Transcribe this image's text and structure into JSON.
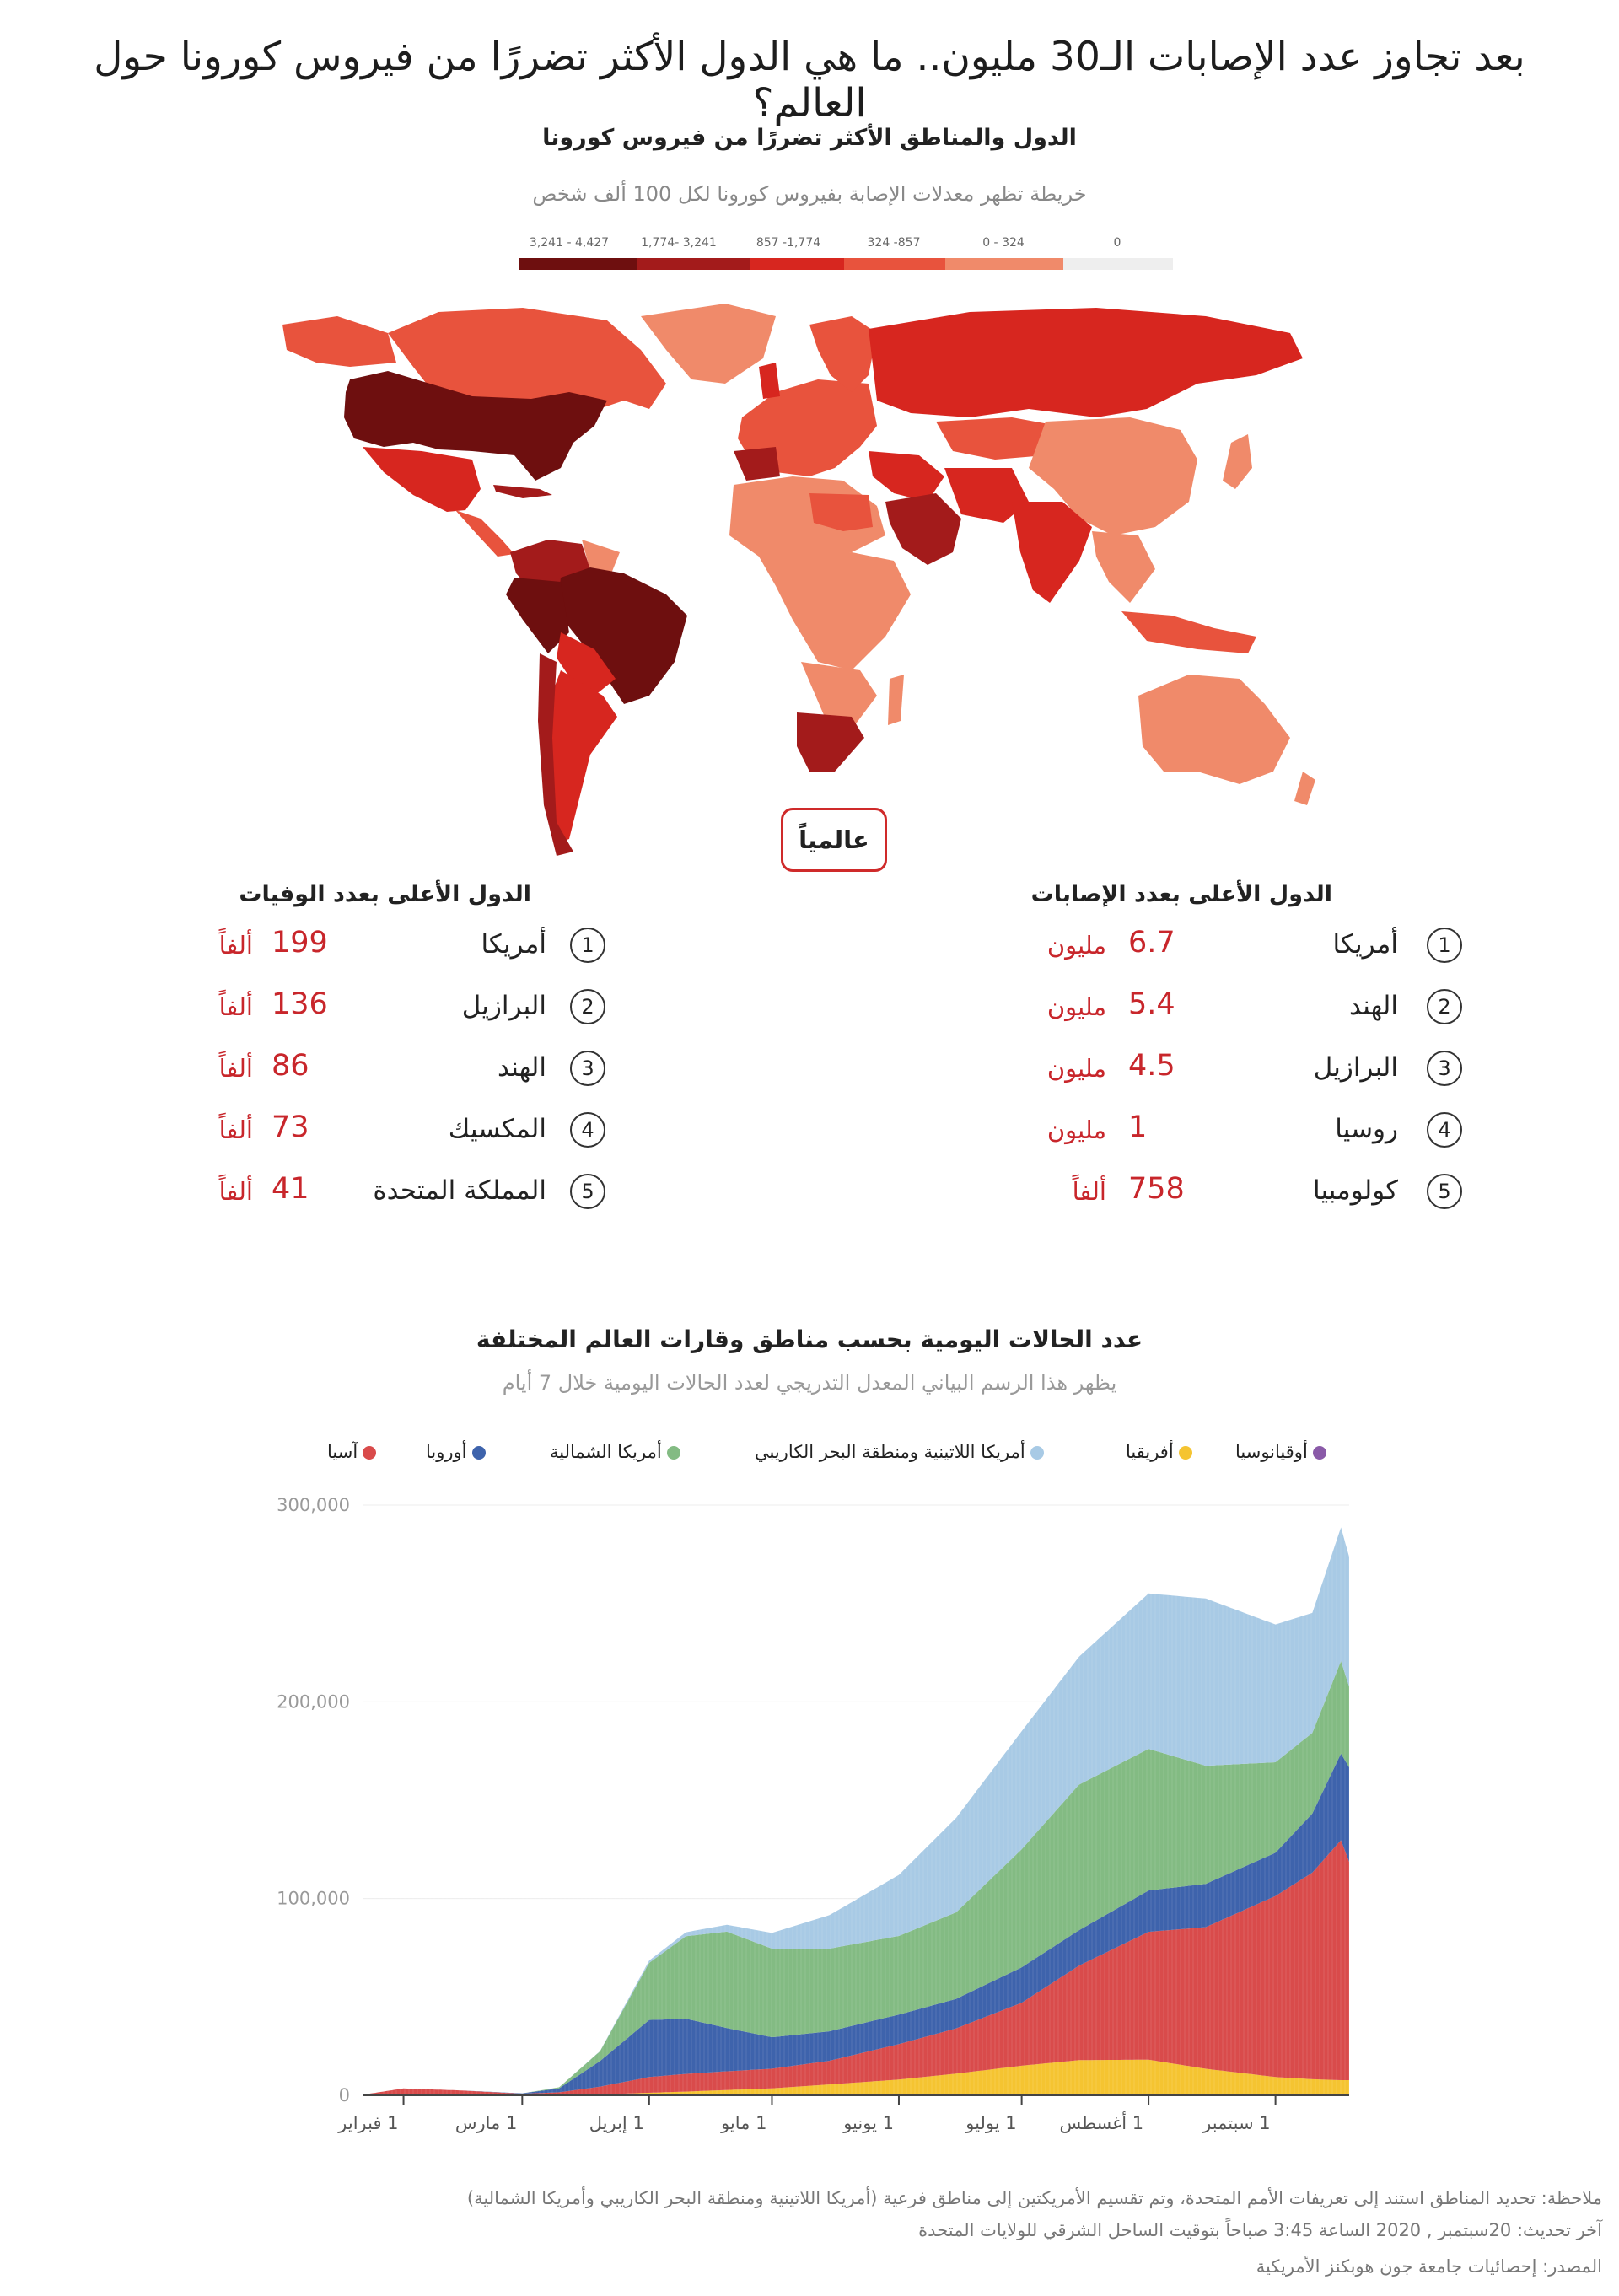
{
  "header": {
    "title": "بعد تجاوز عدد الإصابات الـ30 مليون.. ما هي الدول الأكثر تضررًا من فيروس كورونا حول العالم؟"
  },
  "map": {
    "title": "الدول والمناطق الأكثر تضررًا من فيروس كورونا",
    "subtitle": "خريطة تظهر معدلات الإصابة بفيروس كورونا لكل 100 ألف شخص",
    "legend": [
      {
        "label": "4,427 - 3,241",
        "color": "#6e0f0f"
      },
      {
        "label": "3,241 -1,774",
        "color": "#a31b1b"
      },
      {
        "label": "1,774- 857",
        "color": "#d7261f"
      },
      {
        "label": "857- 324",
        "color": "#e8533d"
      },
      {
        "label": "324 - 0",
        "color": "#f08a6a"
      },
      {
        "label": "0",
        "color": "#eeeeee"
      }
    ],
    "global_button": "عالمياً"
  },
  "rankings": {
    "cases": {
      "title": "الدول الأعلى بعدد الإصابات",
      "rows": [
        {
          "rank": "1",
          "country": "أمريكا",
          "value": "6.7",
          "unit": "مليون"
        },
        {
          "rank": "2",
          "country": "الهند",
          "value": "5.4",
          "unit": "مليون"
        },
        {
          "rank": "3",
          "country": "البرازيل",
          "value": "4.5",
          "unit": "مليون"
        },
        {
          "rank": "4",
          "country": "روسيا",
          "value": "1",
          "unit": "مليون"
        },
        {
          "rank": "5",
          "country": "كولومبيا",
          "value": "758",
          "unit": "ألفاً"
        }
      ]
    },
    "deaths": {
      "title": "الدول الأعلى بعدد الوفيات",
      "rows": [
        {
          "rank": "1",
          "country": "أمريكا",
          "value": "199",
          "unit": "ألفاً"
        },
        {
          "rank": "2",
          "country": "البرازيل",
          "value": "136",
          "unit": "ألفاً"
        },
        {
          "rank": "3",
          "country": "الهند",
          "value": "86",
          "unit": "ألفاً"
        },
        {
          "rank": "4",
          "country": "المكسيك",
          "value": "73",
          "unit": "ألفاً"
        },
        {
          "rank": "5",
          "country": "المملكة المتحدة",
          "value": "41",
          "unit": "ألفاً"
        }
      ]
    }
  },
  "chart_data": {
    "type": "area",
    "title": "عدد الحالات اليومية بحسب مناطق وقارات العالم المختلفة",
    "subtitle": "يظهر هذا الرسم البياني المعدل التدريجي لعدد الحالات اليومية خلال 7 أيام",
    "stacked": true,
    "ylim": [
      0,
      300000
    ],
    "yticks": [
      0,
      100000,
      200000,
      300000
    ],
    "ytick_labels": [
      "0",
      "100,000",
      "200,000",
      "300,000"
    ],
    "xtick_labels": [
      "1 فبراير",
      "1 مارس",
      "1 إبريل",
      "1 مايو",
      "1 يونيو",
      "1 يوليو",
      "1 أغسطس",
      "1 سبتمبر"
    ],
    "x": [
      "2020-01-22",
      "2020-02-01",
      "2020-02-15",
      "2020-03-01",
      "2020-03-10",
      "2020-03-20",
      "2020-04-01",
      "2020-04-10",
      "2020-04-20",
      "2020-05-01",
      "2020-05-15",
      "2020-06-01",
      "2020-06-15",
      "2020-07-01",
      "2020-07-15",
      "2020-08-01",
      "2020-08-15",
      "2020-09-01",
      "2020-09-10",
      "2020-09-17",
      "2020-09-19"
    ],
    "series": [
      {
        "name": "أوقيانوسيا",
        "color": "#8a5aa8",
        "values": [
          0,
          0,
          0,
          0,
          0,
          100,
          300,
          400,
          200,
          50,
          30,
          20,
          20,
          50,
          400,
          600,
          500,
          300,
          200,
          200,
          200
        ]
      },
      {
        "name": "أفريقيا",
        "color": "#f5c431",
        "values": [
          0,
          0,
          0,
          0,
          50,
          300,
          1000,
          1500,
          2500,
          3500,
          5500,
          8000,
          11000,
          15000,
          17500,
          17500,
          13000,
          9000,
          8000,
          7500,
          7500
        ]
      },
      {
        "name": "آسيا",
        "color": "#d94b4b",
        "values": [
          300,
          3500,
          2500,
          800,
          1500,
          4000,
          8000,
          9000,
          9500,
          10000,
          12000,
          18000,
          23000,
          32000,
          48000,
          65000,
          72000,
          92000,
          105000,
          122000,
          111000
        ]
      },
      {
        "name": "أوروبا",
        "color": "#3e63ac",
        "values": [
          0,
          0,
          0,
          200,
          2000,
          13000,
          29000,
          28000,
          22000,
          16000,
          15000,
          15000,
          15000,
          18000,
          18000,
          21000,
          22000,
          22000,
          30000,
          44000,
          48000
        ]
      },
      {
        "name": "أمريكا الشمالية",
        "color": "#83bb83",
        "values": [
          0,
          0,
          0,
          0,
          500,
          5000,
          29000,
          42000,
          49000,
          45000,
          42000,
          40000,
          44000,
          60000,
          74000,
          72000,
          60000,
          46000,
          41000,
          47000,
          41000
        ]
      },
      {
        "name": "أمريكا اللاتينية ومنطقة البحر الكاريبي",
        "color": "#a8cae5",
        "values": [
          0,
          0,
          0,
          0,
          0,
          100,
          1200,
          2000,
          3500,
          8000,
          17000,
          31000,
          48000,
          60000,
          65000,
          79000,
          85000,
          70000,
          61000,
          68000,
          66000
        ]
      }
    ]
  },
  "footer": {
    "note": "ملاحظة: تحديد المناطق استند إلى تعريفات الأمم المتحدة، وتم تقسيم الأمريكتين إلى مناطق فرعية (أمريكا اللاتينية ومنطقة البحر الكاريبي وأمريكا الشمالية)",
    "updated": "آخر تحديث: 20سبتمبر , 2020 الساعة 3:45 صباحاً بتوقيت الساحل الشرقي للولايات المتحدة",
    "source": "المصدر: إحصائيات جامعة جون هوبكنز الأمريكية"
  }
}
